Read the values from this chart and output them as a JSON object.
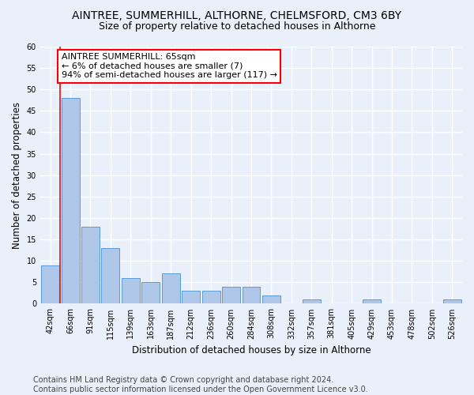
{
  "title1": "AINTREE, SUMMERHILL, ALTHORNE, CHELMSFORD, CM3 6BY",
  "title2": "Size of property relative to detached houses in Althorne",
  "xlabel": "Distribution of detached houses by size in Althorne",
  "ylabel": "Number of detached properties",
  "categories": [
    "42sqm",
    "66sqm",
    "91sqm",
    "115sqm",
    "139sqm",
    "163sqm",
    "187sqm",
    "212sqm",
    "236sqm",
    "260sqm",
    "284sqm",
    "308sqm",
    "332sqm",
    "357sqm",
    "381sqm",
    "405sqm",
    "429sqm",
    "453sqm",
    "478sqm",
    "502sqm",
    "526sqm"
  ],
  "values": [
    9,
    48,
    18,
    13,
    6,
    5,
    7,
    3,
    3,
    4,
    4,
    2,
    0,
    1,
    0,
    0,
    1,
    0,
    0,
    0,
    1
  ],
  "bar_color": "#aec6e8",
  "bar_edge_color": "#5b9bd5",
  "annotation_box_text": "AINTREE SUMMERHILL: 65sqm\n← 6% of detached houses are smaller (7)\n94% of semi-detached houses are larger (117) →",
  "annotation_box_color": "white",
  "annotation_box_edge_color": "red",
  "vline_x": 0.5,
  "ylim": [
    0,
    60
  ],
  "yticks": [
    0,
    5,
    10,
    15,
    20,
    25,
    30,
    35,
    40,
    45,
    50,
    55,
    60
  ],
  "footer": "Contains HM Land Registry data © Crown copyright and database right 2024.\nContains public sector information licensed under the Open Government Licence v3.0.",
  "bg_color": "#eaf0f9",
  "grid_color": "white",
  "title1_fontsize": 10,
  "title2_fontsize": 9,
  "annotation_fontsize": 8,
  "footer_fontsize": 7
}
